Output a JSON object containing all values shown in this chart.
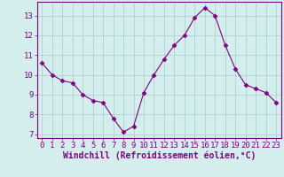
{
  "x": [
    0,
    1,
    2,
    3,
    4,
    5,
    6,
    7,
    8,
    9,
    10,
    11,
    12,
    13,
    14,
    15,
    16,
    17,
    18,
    19,
    20,
    21,
    22,
    23
  ],
  "y": [
    10.6,
    10.0,
    9.7,
    9.6,
    9.0,
    8.7,
    8.6,
    7.8,
    7.1,
    7.4,
    9.1,
    10.0,
    10.8,
    11.5,
    12.0,
    12.9,
    13.4,
    13.0,
    11.5,
    10.3,
    9.5,
    9.3,
    9.1,
    8.6
  ],
  "xlabel": "Windchill (Refroidissement éolien,°C)",
  "ylim_min": 6.8,
  "ylim_max": 13.7,
  "xlim_min": -0.5,
  "xlim_max": 23.5,
  "yticks": [
    7,
    8,
    9,
    10,
    11,
    12,
    13
  ],
  "xticks": [
    0,
    1,
    2,
    3,
    4,
    5,
    6,
    7,
    8,
    9,
    10,
    11,
    12,
    13,
    14,
    15,
    16,
    17,
    18,
    19,
    20,
    21,
    22,
    23
  ],
  "line_color": "#800080",
  "marker": "D",
  "marker_size": 2.5,
  "bg_color": "#d4eeee",
  "grid_color": "#aacccc",
  "xlabel_fontsize": 7,
  "tick_fontsize": 6.5,
  "label_color": "#800080",
  "spine_color": "#800080"
}
